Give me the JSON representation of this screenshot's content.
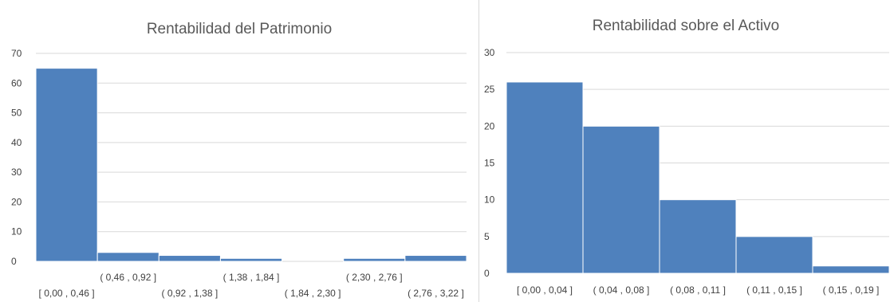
{
  "colors": {
    "bar": "#4f81bd",
    "grid": "#d9d9d9",
    "text": "#404040",
    "title": "#595959"
  },
  "chart_data": [
    {
      "type": "bar",
      "title": "Rentabilidad del Patrimonio",
      "xlabel": "",
      "ylabel": "",
      "ylim": [
        0,
        70
      ],
      "yticks": [
        0,
        10,
        20,
        30,
        40,
        50,
        60,
        70
      ],
      "grid": true,
      "categories": [
        "[ 0,00 ,  0,46 ]",
        "( 0,46 ,  0,92 ]",
        "( 0,92 ,  1,38 ]",
        "( 1,38 ,  1,84 ]",
        "( 1,84 ,  2,30 ]",
        "( 2,30 ,  2,76 ]",
        "( 2,76 ,  3,22 ]"
      ],
      "values": [
        65,
        3,
        2,
        1,
        0,
        1,
        2
      ]
    },
    {
      "type": "bar",
      "title": "Rentabilidad sobre el Activo",
      "xlabel": "",
      "ylabel": "",
      "ylim": [
        0,
        30
      ],
      "yticks": [
        0,
        5,
        10,
        15,
        20,
        25,
        30
      ],
      "grid": true,
      "categories": [
        "[ 0,00 ,  0,04 ]",
        "( 0,04 ,  0,08 ]",
        "( 0,08 ,  0,11 ]",
        "( 0,11 ,  0,15 ]",
        "( 0,15 ,  0,19 ]"
      ],
      "values": [
        26,
        20,
        10,
        5,
        1
      ]
    }
  ]
}
